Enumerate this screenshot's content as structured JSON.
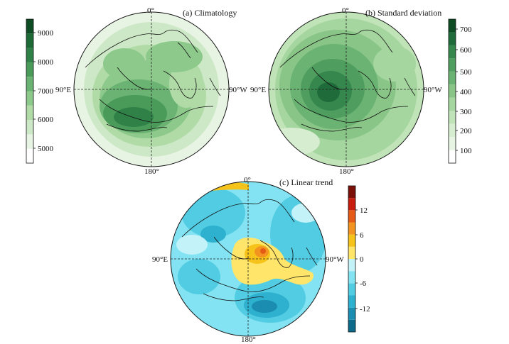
{
  "panels": {
    "a": {
      "title": "(a) Climatology",
      "lon_top": "0°",
      "lon_bottom": "180°",
      "lon_left": "90°E",
      "lon_right": "90°W",
      "colorbar": {
        "ticks": [
          "5000",
          "6000",
          "7000",
          "8000",
          "9000"
        ],
        "colors": [
          "#ffffff",
          "#e8f4e3",
          "#cde8c6",
          "#b0dba7",
          "#8dc98b",
          "#6bb372",
          "#4a9b5a",
          "#2f8147",
          "#1d6a37",
          "#0e4d23"
        ]
      }
    },
    "b": {
      "title": "(b) Standard deviation",
      "lon_top": "0°",
      "lon_bottom": "180°",
      "lon_left": "90°E",
      "lon_right": "90°W",
      "colorbar": {
        "ticks": [
          "100",
          "200",
          "300",
          "400",
          "500",
          "600",
          "700"
        ],
        "colors": [
          "#ffffff",
          "#e8f4e3",
          "#d6edcf",
          "#c0e3b8",
          "#a6d69f",
          "#89c587",
          "#6bb372",
          "#4f9d5f",
          "#36874d",
          "#1f6c3a",
          "#0e4d23"
        ]
      }
    },
    "c": {
      "title": "(c) Linear trend",
      "lon_top": "0°",
      "lon_bottom": "180°",
      "lon_left": "90°E",
      "lon_right": "90°W",
      "colorbar": {
        "ticks": [
          "-12",
          "-6",
          "0",
          "6",
          "12"
        ],
        "colors": [
          "#0e6a8a",
          "#1b8db0",
          "#2eb1cf",
          "#52cce3",
          "#83e3f2",
          "#c3f2f8",
          "#ffe56a",
          "#f6c31a",
          "#f49420",
          "#e65a18",
          "#c81d10",
          "#7a1008"
        ]
      }
    }
  }
}
